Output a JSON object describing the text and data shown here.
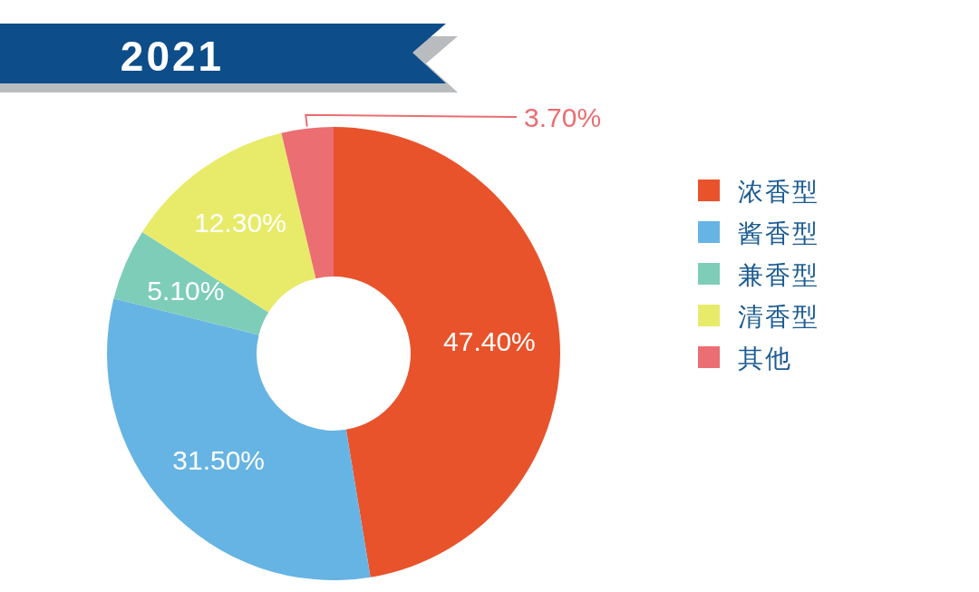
{
  "chart_data": {
    "type": "donut",
    "title": "2021",
    "categories": [
      "浓香型",
      "酱香型",
      "兼香型",
      "清香型",
      "其他"
    ],
    "values": [
      47.4,
      31.5,
      5.1,
      12.3,
      3.7
    ],
    "value_labels": [
      "47.40%",
      "31.50%",
      "5.10%",
      "12.30%",
      "3.70%"
    ],
    "colors": [
      "#e8532b",
      "#66b4e3",
      "#7ecdb9",
      "#e8eb6a",
      "#ea6e72"
    ],
    "legend": "right"
  }
}
